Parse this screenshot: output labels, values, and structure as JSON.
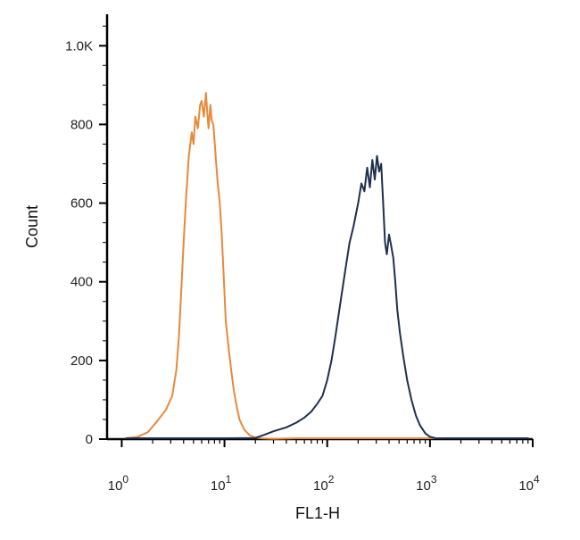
{
  "chart_data": {
    "type": "line",
    "title": "",
    "xlabel": "FL1-H",
    "ylabel": "Count",
    "x_scale": "log",
    "xlim": [
      0.72,
      10000
    ],
    "ylim": [
      0,
      1080
    ],
    "x_ticks": [
      {
        "value": 1,
        "base": "10",
        "exp": "0"
      },
      {
        "value": 10,
        "base": "10",
        "exp": "1"
      },
      {
        "value": 100,
        "base": "10",
        "exp": "2"
      },
      {
        "value": 1000,
        "base": "10",
        "exp": "3"
      },
      {
        "value": 10000,
        "base": "10",
        "exp": "4"
      }
    ],
    "y_ticks": [
      {
        "value": 0,
        "label": "0"
      },
      {
        "value": 200,
        "label": "200"
      },
      {
        "value": 400,
        "label": "400"
      },
      {
        "value": 600,
        "label": "600"
      },
      {
        "value": 800,
        "label": "800"
      },
      {
        "value": 1000,
        "label": "1.0K"
      }
    ],
    "grid": false,
    "legend": "none",
    "series": [
      {
        "color": "#E8893A",
        "x": [
          1.1,
          1.4,
          1.8,
          2.2,
          2.7,
          3.1,
          3.4,
          3.6,
          3.8,
          4.0,
          4.2,
          4.5,
          4.8,
          5.0,
          5.2,
          5.5,
          5.8,
          6.0,
          6.3,
          6.6,
          6.8,
          7.0,
          7.3,
          7.5,
          7.8,
          8.0,
          8.3,
          8.6,
          9.0,
          9.4,
          9.8,
          10.3,
          11.0,
          11.7,
          12.4,
          13.2,
          14.0,
          15.5,
          17.5,
          20.0,
          23.0,
          30.0,
          50.0,
          100.0,
          300.0,
          1000.0,
          3000.0,
          9000.0
        ],
        "y": [
          0,
          5,
          18,
          45,
          75,
          110,
          175,
          260,
          380,
          500,
          600,
          720,
          780,
          750,
          820,
          790,
          850,
          860,
          820,
          880,
          830,
          790,
          850,
          810,
          800,
          760,
          700,
          650,
          600,
          520,
          420,
          300,
          230,
          170,
          120,
          80,
          50,
          25,
          10,
          4,
          2,
          1,
          0,
          0,
          0,
          0,
          0,
          0
        ]
      },
      {
        "color": "#1F2F4E",
        "x": [
          1.1,
          5.0,
          10.0,
          20.0,
          25.0,
          30.0,
          40.0,
          50.0,
          60.0,
          70.0,
          80.0,
          90.0,
          100.0,
          110.0,
          120.0,
          135.0,
          150.0,
          165.0,
          180.0,
          200.0,
          215.0,
          230.0,
          245.0,
          260.0,
          275.0,
          290.0,
          305.0,
          320.0,
          335.0,
          350.0,
          365.0,
          380.0,
          400.0,
          420.0,
          440.0,
          460.0,
          480.0,
          510.0,
          550.0,
          600.0,
          660.0,
          730.0,
          800.0,
          900.0,
          1000.0,
          1150.0,
          1400.0,
          2000.0,
          4000.0,
          9000.0
        ],
        "y": [
          0,
          0,
          0,
          3,
          12,
          20,
          30,
          42,
          55,
          70,
          90,
          110,
          150,
          200,
          260,
          350,
          430,
          500,
          540,
          600,
          650,
          630,
          690,
          640,
          710,
          660,
          720,
          680,
          700,
          600,
          500,
          470,
          520,
          490,
          460,
          400,
          330,
          270,
          210,
          150,
          100,
          60,
          35,
          15,
          6,
          2,
          0,
          0,
          0,
          0
        ]
      }
    ]
  }
}
